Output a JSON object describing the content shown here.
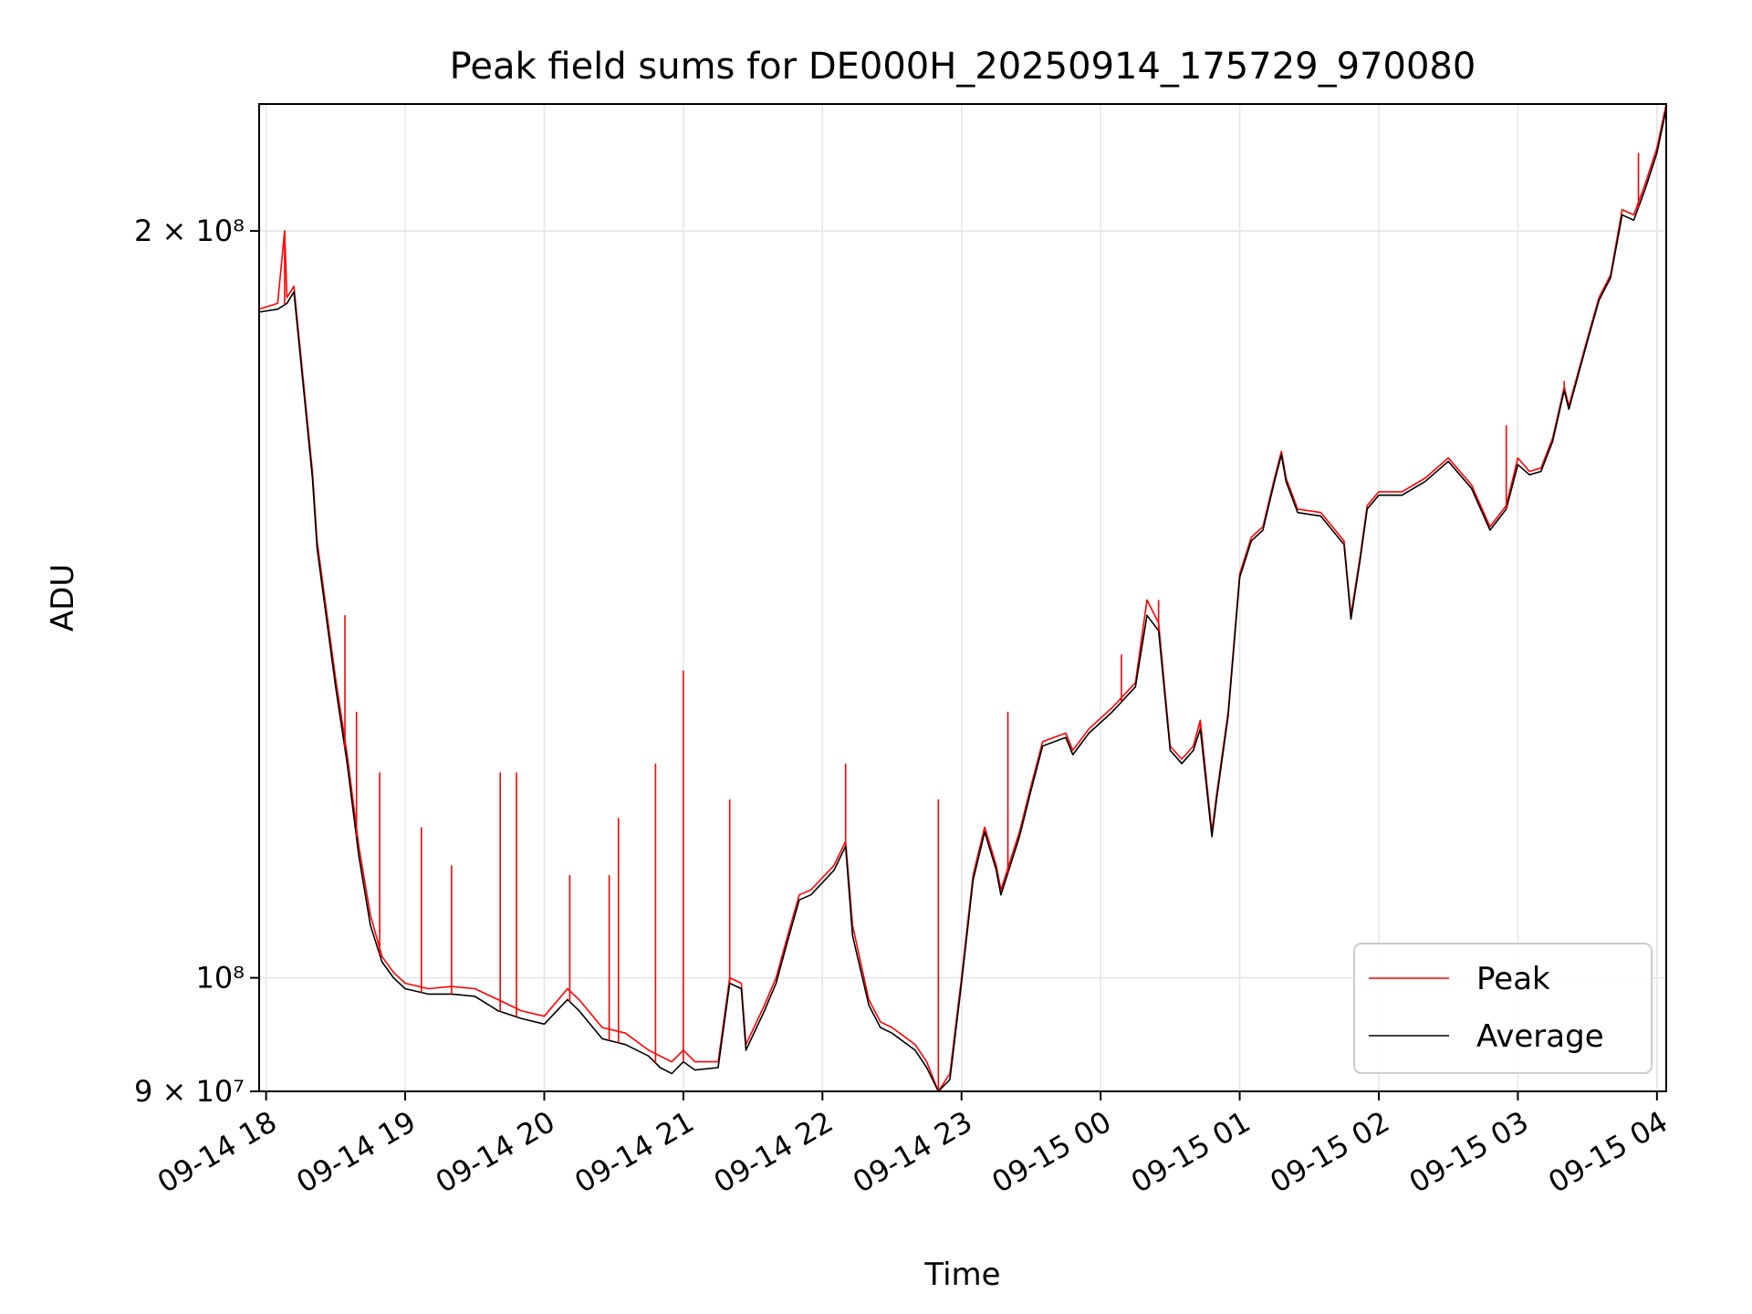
{
  "chart_data": {
    "type": "line",
    "title": "Peak field sums for DE000H_20250914_175729_970080",
    "xlabel": "Time",
    "ylabel": "ADU",
    "y_scale": "log",
    "grid": true,
    "legend_position": "bottom-right",
    "xlim": [
      "2025-09-14 17:57",
      "2025-09-15 04:04"
    ],
    "ylim": [
      90000000,
      225000000
    ],
    "x_ticks": [
      {
        "value": "2025-09-14 18:00",
        "label": "09-14 18"
      },
      {
        "value": "2025-09-14 19:00",
        "label": "09-14 19"
      },
      {
        "value": "2025-09-14 20:00",
        "label": "09-14 20"
      },
      {
        "value": "2025-09-14 21:00",
        "label": "09-14 21"
      },
      {
        "value": "2025-09-14 22:00",
        "label": "09-14 22"
      },
      {
        "value": "2025-09-14 23:00",
        "label": "09-14 23"
      },
      {
        "value": "2025-09-15 00:00",
        "label": "09-15 00"
      },
      {
        "value": "2025-09-15 01:00",
        "label": "09-15 01"
      },
      {
        "value": "2025-09-15 02:00",
        "label": "09-15 02"
      },
      {
        "value": "2025-09-15 03:00",
        "label": "09-15 03"
      },
      {
        "value": "2025-09-15 04:00",
        "label": "09-15 04"
      }
    ],
    "y_ticks": [
      {
        "value": 90000000,
        "label": "9 × 10⁷"
      },
      {
        "value": 100000000,
        "label": "10⁸"
      },
      {
        "value": 200000000,
        "label": "2 × 10⁸"
      }
    ],
    "series": [
      {
        "name": "Peak",
        "color": "#ff0000",
        "points": [
          [
            "2025-09-14 17:57",
            186000000
          ],
          [
            "2025-09-14 18:05",
            187000000
          ],
          [
            "2025-09-14 18:08",
            200000000
          ],
          [
            "2025-09-14 18:09",
            188000000
          ],
          [
            "2025-09-14 18:12",
            190000000
          ],
          [
            "2025-09-14 18:20",
            160000000
          ],
          [
            "2025-09-14 18:22",
            150000000
          ],
          [
            "2025-09-14 18:30",
            132000000
          ],
          [
            "2025-09-14 18:35",
            123000000
          ],
          [
            "2025-09-14 18:40",
            113000000
          ],
          [
            "2025-09-14 18:45",
            106000000
          ],
          [
            "2025-09-14 18:50",
            102000000
          ],
          [
            "2025-09-14 18:55",
            100500000
          ],
          [
            "2025-09-14 19:00",
            99500000
          ],
          [
            "2025-09-14 19:10",
            99000000
          ],
          [
            "2025-09-14 19:20",
            99200000
          ],
          [
            "2025-09-14 19:30",
            99000000
          ],
          [
            "2025-09-14 19:40",
            98000000
          ],
          [
            "2025-09-14 19:50",
            97000000
          ],
          [
            "2025-09-14 20:00",
            96500000
          ],
          [
            "2025-09-14 20:10",
            99000000
          ],
          [
            "2025-09-14 20:15",
            98000000
          ],
          [
            "2025-09-14 20:25",
            95500000
          ],
          [
            "2025-09-14 20:35",
            95000000
          ],
          [
            "2025-09-14 20:45",
            93500000
          ],
          [
            "2025-09-14 20:50",
            93000000
          ],
          [
            "2025-09-14 20:55",
            92500000
          ],
          [
            "2025-09-14 21:00",
            93500000
          ],
          [
            "2025-09-14 21:05",
            92500000
          ],
          [
            "2025-09-14 21:15",
            92500000
          ],
          [
            "2025-09-14 21:20",
            100000000
          ],
          [
            "2025-09-14 21:25",
            99500000
          ],
          [
            "2025-09-14 21:27",
            94000000
          ],
          [
            "2025-09-14 21:35",
            97500000
          ],
          [
            "2025-09-14 21:40",
            100000000
          ],
          [
            "2025-09-14 21:45",
            104000000
          ],
          [
            "2025-09-14 21:50",
            108000000
          ],
          [
            "2025-09-14 21:55",
            108500000
          ],
          [
            "2025-09-14 22:05",
            111000000
          ],
          [
            "2025-09-14 22:10",
            113500000
          ],
          [
            "2025-09-14 22:13",
            105000000
          ],
          [
            "2025-09-14 22:20",
            98000000
          ],
          [
            "2025-09-14 22:25",
            96000000
          ],
          [
            "2025-09-14 22:30",
            95500000
          ],
          [
            "2025-09-14 22:40",
            94000000
          ],
          [
            "2025-09-14 22:45",
            92500000
          ],
          [
            "2025-09-14 22:50",
            90000000
          ],
          [
            "2025-09-14 22:55",
            91500000
          ],
          [
            "2025-09-14 23:00",
            100000000
          ],
          [
            "2025-09-14 23:05",
            110000000
          ],
          [
            "2025-09-14 23:10",
            115000000
          ],
          [
            "2025-09-14 23:15",
            111000000
          ],
          [
            "2025-09-14 23:17",
            108500000
          ],
          [
            "2025-09-14 23:25",
            114500000
          ],
          [
            "2025-09-14 23:30",
            119500000
          ],
          [
            "2025-09-14 23:35",
            124500000
          ],
          [
            "2025-09-14 23:45",
            125500000
          ],
          [
            "2025-09-14 23:48",
            123500000
          ],
          [
            "2025-09-14 23:55",
            126000000
          ],
          [
            "2025-09-15 00:05",
            128500000
          ],
          [
            "2025-09-15 00:15",
            131500000
          ],
          [
            "2025-09-15 00:20",
            142000000
          ],
          [
            "2025-09-15 00:25",
            139000000
          ],
          [
            "2025-09-15 00:30",
            124000000
          ],
          [
            "2025-09-15 00:35",
            122500000
          ],
          [
            "2025-09-15 00:40",
            124000000
          ],
          [
            "2025-09-15 00:43",
            127000000
          ],
          [
            "2025-09-15 00:48",
            114500000
          ],
          [
            "2025-09-15 00:50",
            118500000
          ],
          [
            "2025-09-15 00:55",
            128000000
          ],
          [
            "2025-09-15 01:00",
            145500000
          ],
          [
            "2025-09-15 01:05",
            150500000
          ],
          [
            "2025-09-15 01:10",
            152000000
          ],
          [
            "2025-09-15 01:15",
            159000000
          ],
          [
            "2025-09-15 01:18",
            163000000
          ],
          [
            "2025-09-15 01:20",
            159000000
          ],
          [
            "2025-09-15 01:25",
            154500000
          ],
          [
            "2025-09-15 01:35",
            154000000
          ],
          [
            "2025-09-15 01:45",
            150000000
          ],
          [
            "2025-09-15 01:48",
            140000000
          ],
          [
            "2025-09-15 01:52",
            148000000
          ],
          [
            "2025-09-15 01:55",
            155000000
          ],
          [
            "2025-09-15 02:00",
            157000000
          ],
          [
            "2025-09-15 02:10",
            157000000
          ],
          [
            "2025-09-15 02:20",
            159000000
          ],
          [
            "2025-09-15 02:30",
            162000000
          ],
          [
            "2025-09-15 02:40",
            158000000
          ],
          [
            "2025-09-15 02:48",
            152000000
          ],
          [
            "2025-09-15 02:55",
            155000000
          ],
          [
            "2025-09-15 03:00",
            162000000
          ],
          [
            "2025-09-15 03:05",
            160000000
          ],
          [
            "2025-09-15 03:10",
            160500000
          ],
          [
            "2025-09-15 03:15",
            165000000
          ],
          [
            "2025-09-15 03:20",
            173000000
          ],
          [
            "2025-09-15 03:22",
            170000000
          ],
          [
            "2025-09-15 03:30",
            181000000
          ],
          [
            "2025-09-15 03:35",
            188000000
          ],
          [
            "2025-09-15 03:40",
            192000000
          ],
          [
            "2025-09-15 03:45",
            204000000
          ],
          [
            "2025-09-15 03:50",
            203000000
          ],
          [
            "2025-09-15 03:55",
            209000000
          ],
          [
            "2025-09-15 04:00",
            216000000
          ],
          [
            "2025-09-15 04:04",
            225000000
          ]
        ]
      },
      {
        "name": "Average",
        "color": "#000000",
        "points": [
          [
            "2025-09-14 17:57",
            185500000
          ],
          [
            "2025-09-14 18:05",
            186000000
          ],
          [
            "2025-09-14 18:09",
            187000000
          ],
          [
            "2025-09-14 18:12",
            189000000
          ],
          [
            "2025-09-14 18:20",
            159000000
          ],
          [
            "2025-09-14 18:22",
            149000000
          ],
          [
            "2025-09-14 18:30",
            131000000
          ],
          [
            "2025-09-14 18:35",
            122000000
          ],
          [
            "2025-09-14 18:40",
            112000000
          ],
          [
            "2025-09-14 18:45",
            105000000
          ],
          [
            "2025-09-14 18:50",
            101500000
          ],
          [
            "2025-09-14 18:55",
            100000000
          ],
          [
            "2025-09-14 19:00",
            99000000
          ],
          [
            "2025-09-14 19:10",
            98500000
          ],
          [
            "2025-09-14 19:20",
            98500000
          ],
          [
            "2025-09-14 19:30",
            98300000
          ],
          [
            "2025-09-14 19:40",
            97000000
          ],
          [
            "2025-09-14 19:50",
            96300000
          ],
          [
            "2025-09-14 20:00",
            95800000
          ],
          [
            "2025-09-14 20:10",
            98000000
          ],
          [
            "2025-09-14 20:15",
            97000000
          ],
          [
            "2025-09-14 20:25",
            94500000
          ],
          [
            "2025-09-14 20:35",
            94000000
          ],
          [
            "2025-09-14 20:45",
            93000000
          ],
          [
            "2025-09-14 20:50",
            92000000
          ],
          [
            "2025-09-14 20:55",
            91500000
          ],
          [
            "2025-09-14 21:00",
            92500000
          ],
          [
            "2025-09-14 21:05",
            91800000
          ],
          [
            "2025-09-14 21:15",
            92000000
          ],
          [
            "2025-09-14 21:20",
            99500000
          ],
          [
            "2025-09-14 21:25",
            99000000
          ],
          [
            "2025-09-14 21:27",
            93500000
          ],
          [
            "2025-09-14 21:35",
            97000000
          ],
          [
            "2025-09-14 21:40",
            99500000
          ],
          [
            "2025-09-14 21:45",
            103500000
          ],
          [
            "2025-09-14 21:50",
            107500000
          ],
          [
            "2025-09-14 21:55",
            108000000
          ],
          [
            "2025-09-14 22:05",
            110500000
          ],
          [
            "2025-09-14 22:10",
            113000000
          ],
          [
            "2025-09-14 22:13",
            104000000
          ],
          [
            "2025-09-14 22:20",
            97500000
          ],
          [
            "2025-09-14 22:25",
            95500000
          ],
          [
            "2025-09-14 22:30",
            95000000
          ],
          [
            "2025-09-14 22:40",
            93500000
          ],
          [
            "2025-09-14 22:45",
            92000000
          ],
          [
            "2025-09-14 22:50",
            90000000
          ],
          [
            "2025-09-14 22:55",
            91000000
          ],
          [
            "2025-09-14 23:00",
            99500000
          ],
          [
            "2025-09-14 23:05",
            109500000
          ],
          [
            "2025-09-14 23:10",
            114500000
          ],
          [
            "2025-09-14 23:15",
            110500000
          ],
          [
            "2025-09-14 23:17",
            108000000
          ],
          [
            "2025-09-14 23:25",
            114000000
          ],
          [
            "2025-09-14 23:30",
            119000000
          ],
          [
            "2025-09-14 23:35",
            124000000
          ],
          [
            "2025-09-14 23:45",
            125000000
          ],
          [
            "2025-09-14 23:48",
            123000000
          ],
          [
            "2025-09-14 23:55",
            125500000
          ],
          [
            "2025-09-15 00:05",
            128000000
          ],
          [
            "2025-09-15 00:15",
            131000000
          ],
          [
            "2025-09-15 00:20",
            140000000
          ],
          [
            "2025-09-15 00:25",
            138000000
          ],
          [
            "2025-09-15 00:30",
            123500000
          ],
          [
            "2025-09-15 00:35",
            122000000
          ],
          [
            "2025-09-15 00:40",
            123500000
          ],
          [
            "2025-09-15 00:43",
            126000000
          ],
          [
            "2025-09-15 00:48",
            114000000
          ],
          [
            "2025-09-15 00:50",
            118000000
          ],
          [
            "2025-09-15 00:55",
            127500000
          ],
          [
            "2025-09-15 01:00",
            145000000
          ],
          [
            "2025-09-15 01:05",
            150000000
          ],
          [
            "2025-09-15 01:10",
            151500000
          ],
          [
            "2025-09-15 01:15",
            158500000
          ],
          [
            "2025-09-15 01:18",
            162500000
          ],
          [
            "2025-09-15 01:20",
            158500000
          ],
          [
            "2025-09-15 01:25",
            154000000
          ],
          [
            "2025-09-15 01:35",
            153500000
          ],
          [
            "2025-09-15 01:45",
            149500000
          ],
          [
            "2025-09-15 01:48",
            139500000
          ],
          [
            "2025-09-15 01:52",
            147500000
          ],
          [
            "2025-09-15 01:55",
            154500000
          ],
          [
            "2025-09-15 02:00",
            156500000
          ],
          [
            "2025-09-15 02:10",
            156500000
          ],
          [
            "2025-09-15 02:20",
            158500000
          ],
          [
            "2025-09-15 02:30",
            161500000
          ],
          [
            "2025-09-15 02:40",
            157500000
          ],
          [
            "2025-09-15 02:48",
            151500000
          ],
          [
            "2025-09-15 02:55",
            154500000
          ],
          [
            "2025-09-15 03:00",
            161000000
          ],
          [
            "2025-09-15 03:05",
            159500000
          ],
          [
            "2025-09-15 03:10",
            160000000
          ],
          [
            "2025-09-15 03:15",
            164500000
          ],
          [
            "2025-09-15 03:20",
            172500000
          ],
          [
            "2025-09-15 03:22",
            169500000
          ],
          [
            "2025-09-15 03:30",
            180500000
          ],
          [
            "2025-09-15 03:35",
            187500000
          ],
          [
            "2025-09-15 03:40",
            191500000
          ],
          [
            "2025-09-15 03:45",
            203000000
          ],
          [
            "2025-09-15 03:50",
            202000000
          ],
          [
            "2025-09-15 03:55",
            208000000
          ],
          [
            "2025-09-15 04:00",
            215000000
          ],
          [
            "2025-09-15 04:04",
            224000000
          ]
        ]
      }
    ],
    "peak_spikes": [
      [
        "2025-09-14 18:08",
        200000000
      ],
      [
        "2025-09-14 18:34",
        140000000
      ],
      [
        "2025-09-14 18:39",
        128000000
      ],
      [
        "2025-09-14 18:49",
        121000000
      ],
      [
        "2025-09-14 19:07",
        115000000
      ],
      [
        "2025-09-14 19:20",
        111000000
      ],
      [
        "2025-09-14 19:41",
        121000000
      ],
      [
        "2025-09-14 19:48",
        121000000
      ],
      [
        "2025-09-14 20:11",
        110000000
      ],
      [
        "2025-09-14 20:28",
        110000000
      ],
      [
        "2025-09-14 20:32",
        116000000
      ],
      [
        "2025-09-14 20:48",
        122000000
      ],
      [
        "2025-09-14 21:00",
        133000000
      ],
      [
        "2025-09-14 21:20",
        118000000
      ],
      [
        "2025-09-14 22:10",
        122000000
      ],
      [
        "2025-09-14 22:50",
        118000000
      ],
      [
        "2025-09-14 23:20",
        128000000
      ],
      [
        "2025-09-15 00:09",
        135000000
      ],
      [
        "2025-09-15 00:25",
        142000000
      ],
      [
        "2025-09-15 00:43",
        127000000
      ],
      [
        "2025-09-15 01:45",
        150000000
      ],
      [
        "2025-09-15 02:55",
        167000000
      ],
      [
        "2025-09-15 03:20",
        174000000
      ],
      [
        "2025-09-15 03:52",
        215000000
      ]
    ]
  }
}
